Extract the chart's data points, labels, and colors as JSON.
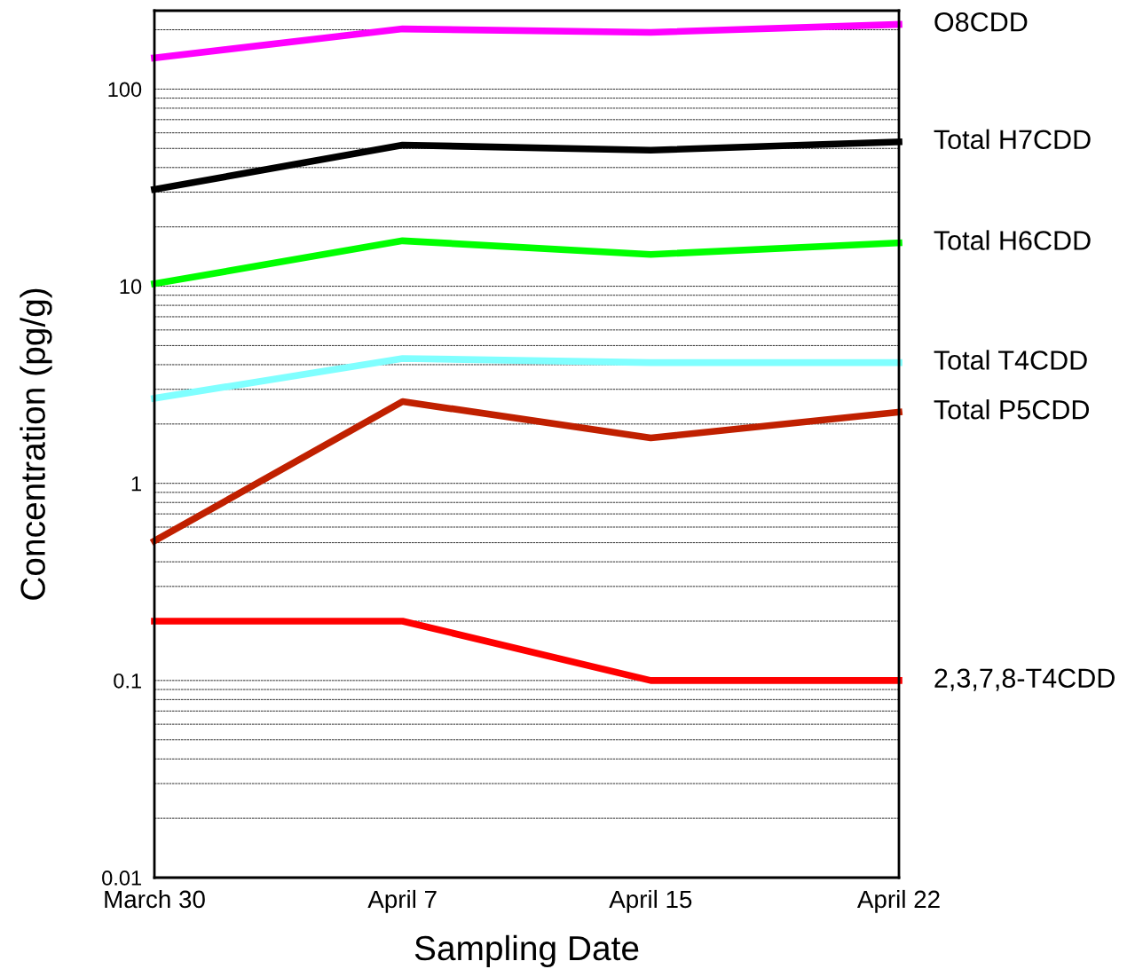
{
  "chart_data": {
    "type": "line",
    "xlabel": "Sampling Date",
    "ylabel": "Concentration (pg/g)",
    "categories": [
      "March 30",
      "April 7",
      "April 15",
      "April 22"
    ],
    "log": "y",
    "grid": "y",
    "legend": false,
    "marker": "none",
    "line_style": "solid",
    "ylim": [
      0.01,
      250
    ],
    "yticks": [
      0.01,
      {
        "value": 0.02,
        "label": null
      },
      {
        "value": 0.03,
        "label": null
      },
      {
        "value": 0.04,
        "label": null
      },
      {
        "value": 0.05,
        "label": null
      },
      {
        "value": 0.06,
        "label": null
      },
      {
        "value": 0.07,
        "label": null
      },
      {
        "value": 0.08,
        "label": null
      },
      {
        "value": 0.09,
        "label": null
      },
      0.1,
      {
        "value": 0.2,
        "label": null
      },
      {
        "value": 0.3,
        "label": null
      },
      {
        "value": 0.4,
        "label": null
      },
      {
        "value": 0.5,
        "label": null
      },
      {
        "value": 0.6,
        "label": null
      },
      {
        "value": 0.7,
        "label": null
      },
      {
        "value": 0.8,
        "label": null
      },
      {
        "value": 0.9,
        "label": null
      },
      1,
      {
        "value": 2,
        "label": null
      },
      {
        "value": 3,
        "label": null
      },
      {
        "value": 4,
        "label": null
      },
      {
        "value": 5,
        "label": null
      },
      {
        "value": 6,
        "label": null
      },
      {
        "value": 7,
        "label": null
      },
      {
        "value": 8,
        "label": null
      },
      {
        "value": 9,
        "label": null
      },
      10,
      {
        "value": 20,
        "label": null
      },
      {
        "value": 30,
        "label": null
      },
      {
        "value": 40,
        "label": null
      },
      {
        "value": 50,
        "label": null
      },
      {
        "value": 60,
        "label": null
      },
      {
        "value": 70,
        "label": null
      },
      {
        "value": 80,
        "label": null
      },
      {
        "value": 90,
        "label": null
      },
      100,
      {
        "value": 200,
        "label": null
      }
    ],
    "series": [
      {
        "name": "O8CDD",
        "color": "#ff00ff",
        "values": [
          144,
          202,
          194,
          213
        ]
      },
      {
        "name": "Total H7CDD",
        "color": "#000000",
        "values": [
          31,
          52,
          49,
          54
        ]
      },
      {
        "name": "Total H6CDD",
        "color": "#00ff00",
        "values": [
          10.3,
          17,
          14.5,
          16.6
        ]
      },
      {
        "name": "Total T4CDD",
        "color": "#80ffff",
        "values": [
          2.7,
          4.3,
          4.1,
          4.1
        ]
      },
      {
        "name": "Total P5CDD",
        "color": "#c02000",
        "values": [
          0.51,
          2.6,
          1.7,
          2.3
        ]
      },
      {
        "name": "2,3,7,8-T4CDD",
        "color": "#ff0000",
        "values": [
          0.2,
          0.2,
          0.1,
          0.1
        ]
      }
    ]
  }
}
